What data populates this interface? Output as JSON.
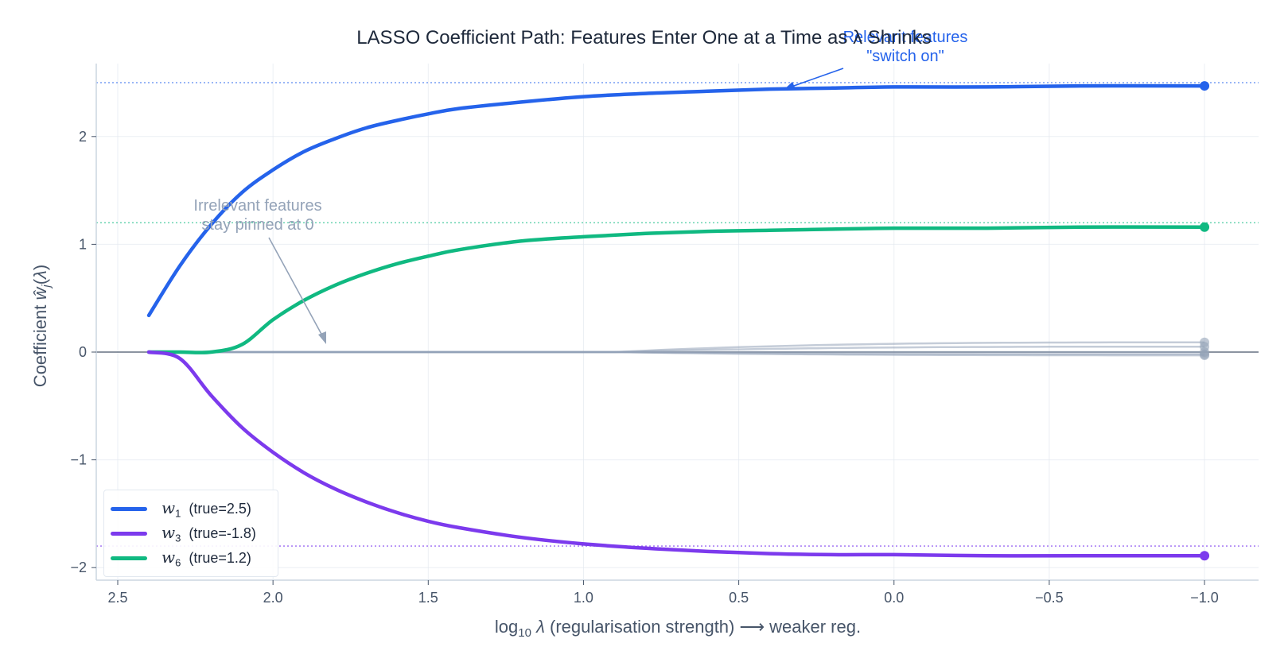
{
  "chart_data": {
    "type": "line",
    "title": "LASSO Coefficient Path:  Features Enter One at a Time as λ Shrinks",
    "xlabel": "log10 λ  (regularisation strength)  ⟶  weaker reg.",
    "ylabel": "Coefficient  ŵj(λ)",
    "xlim": [
      2.57,
      -1.17
    ],
    "ylim": [
      -2.12,
      2.7
    ],
    "x_inverted": true,
    "grid": true,
    "legend_position": "lower left",
    "x_ticks": [
      2.5,
      2.0,
      1.5,
      1.0,
      0.5,
      0.0,
      -0.5,
      -1.0
    ],
    "x_tick_labels": [
      "2.5",
      "2.0",
      "1.5",
      "1.0",
      "0.5",
      "0.0",
      "−0.5",
      "−1.0"
    ],
    "y_ticks": [
      2,
      1,
      0,
      -1,
      -2
    ],
    "y_tick_labels": [
      "2",
      "1",
      "0",
      "−1",
      "−2"
    ],
    "x": [
      2.4,
      2.3,
      2.2,
      2.1,
      2.0,
      1.9,
      1.8,
      1.7,
      1.6,
      1.5,
      1.4,
      1.2,
      1.0,
      0.8,
      0.6,
      0.4,
      0.2,
      0.0,
      -0.3,
      -0.6,
      -1.0
    ],
    "series": [
      {
        "name": "w1 (true=2.5)",
        "color": "#2563eb",
        "true_value": 2.5,
        "values": [
          0.34,
          0.8,
          1.18,
          1.48,
          1.69,
          1.86,
          1.98,
          2.08,
          2.15,
          2.21,
          2.26,
          2.32,
          2.37,
          2.4,
          2.42,
          2.44,
          2.45,
          2.46,
          2.46,
          2.47,
          2.47
        ]
      },
      {
        "name": "w3 (true=-1.8)",
        "color": "#7c3aed",
        "true_value": -1.8,
        "values": [
          0.0,
          -0.06,
          -0.4,
          -0.7,
          -0.93,
          -1.12,
          -1.27,
          -1.39,
          -1.49,
          -1.57,
          -1.63,
          -1.72,
          -1.78,
          -1.82,
          -1.85,
          -1.87,
          -1.88,
          -1.88,
          -1.89,
          -1.89,
          -1.89
        ]
      },
      {
        "name": "w6 (true=1.2)",
        "color": "#10b981",
        "true_value": 1.2,
        "values": [
          0.0,
          0.0,
          0.0,
          0.07,
          0.3,
          0.48,
          0.62,
          0.73,
          0.82,
          0.89,
          0.95,
          1.03,
          1.07,
          1.1,
          1.12,
          1.13,
          1.14,
          1.15,
          1.15,
          1.16,
          1.16
        ]
      },
      {
        "name": "irrelevant features",
        "color": "#94a3b8",
        "values_end": [
          0.09,
          0.05,
          0.0,
          -0.02,
          -0.03
        ],
        "departure_x": 0.9
      }
    ],
    "reference_lines": [
      {
        "y": 2.5,
        "color": "#2563eb",
        "style": "dotted"
      },
      {
        "y": 1.2,
        "color": "#10b981",
        "style": "dotted"
      },
      {
        "y": -1.8,
        "color": "#7c3aed",
        "style": "dotted"
      },
      {
        "y": 0,
        "color": "#475569",
        "style": "solid"
      }
    ],
    "annotations": [
      {
        "text": "Relevant features\n\"switch on\"",
        "color": "#2563eb",
        "xy": [
          0.37,
          2.44
        ],
        "text_xy": [
          0.0,
          2.75
        ]
      },
      {
        "text": "Irrelevant features\nstay pinned at 0",
        "color": "#94a3b8",
        "xy": [
          1.8,
          0.08
        ],
        "text_xy": [
          2.05,
          1.25
        ]
      }
    ]
  },
  "legend": {
    "items": [
      {
        "symbol": "w",
        "sub": "1",
        "text": "(true=2.5)",
        "color": "#2563eb"
      },
      {
        "symbol": "w",
        "sub": "3",
        "text": "(true=-1.8)",
        "color": "#7c3aed"
      },
      {
        "symbol": "w",
        "sub": "6",
        "text": "(true=1.2)",
        "color": "#10b981"
      }
    ]
  },
  "annotations_text": {
    "relevant_line1": "Relevant features",
    "relevant_line2": "\"switch on\"",
    "irrelevant_line1": "Irrelevant features",
    "irrelevant_line2": "stay pinned at 0"
  }
}
